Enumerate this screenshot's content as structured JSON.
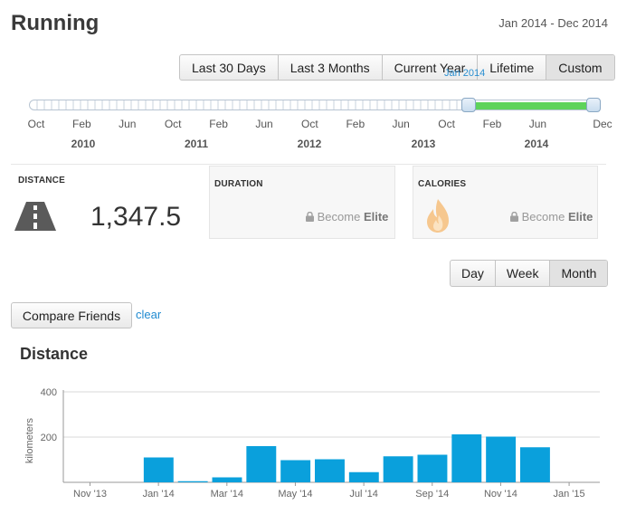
{
  "header": {
    "title": "Running",
    "date_range": "Jan 2014 - Dec 2014"
  },
  "range_buttons": [
    {
      "label": "Last 30 Days",
      "active": false
    },
    {
      "label": "Last 3 Months",
      "active": false
    },
    {
      "label": "Current Year",
      "active": false
    },
    {
      "label": "Lifetime",
      "active": false
    },
    {
      "label": "Custom",
      "active": true
    }
  ],
  "slider": {
    "handle_label": "Jan 2014",
    "months": [
      "Oct",
      "Feb",
      "Jun",
      "Oct",
      "Feb",
      "Jun",
      "Oct",
      "Feb",
      "Jun",
      "Oct",
      "Feb",
      "Jun",
      "Dec"
    ],
    "years": [
      "2010",
      "2011",
      "2012",
      "2013",
      "2014"
    ],
    "range_color": "#5ed35a"
  },
  "stats": {
    "distance": {
      "label": "DISTANCE",
      "value": "1,347.5",
      "icon": "road-icon"
    },
    "duration": {
      "label": "DURATION",
      "lock": "Become",
      "lock_strong": "Elite",
      "icon": "lock-icon"
    },
    "calories": {
      "label": "CALORIES",
      "lock": "Become",
      "lock_strong": "Elite",
      "icon": "flame-icon"
    }
  },
  "period_buttons": [
    {
      "label": "Day",
      "active": false
    },
    {
      "label": "Week",
      "active": false
    },
    {
      "label": "Month",
      "active": true
    }
  ],
  "compare": {
    "label": "Compare Friends",
    "clear": "clear"
  },
  "chart_title": "Distance",
  "chart_data": {
    "type": "bar",
    "title": "Distance",
    "ylabel": "kilometers",
    "ylim": [
      0,
      400
    ],
    "yticks": [
      200,
      400
    ],
    "categories": [
      "Jan '14",
      "Feb '14",
      "Mar '14",
      "Apr '14",
      "May '14",
      "Jun '14",
      "Jul '14",
      "Aug '14",
      "Sep '14",
      "Oct '14",
      "Nov '14",
      "Dec '14"
    ],
    "values": [
      110,
      5,
      22,
      160,
      98,
      102,
      45,
      115,
      122,
      212,
      202,
      155
    ],
    "xtick_labels": [
      "Nov '13",
      "Jan '14",
      "Mar '14",
      "May '14",
      "Jul '14",
      "Sep '14",
      "Nov '14",
      "Jan '15"
    ],
    "bar_color": "#0aa0dc",
    "grid": true
  }
}
